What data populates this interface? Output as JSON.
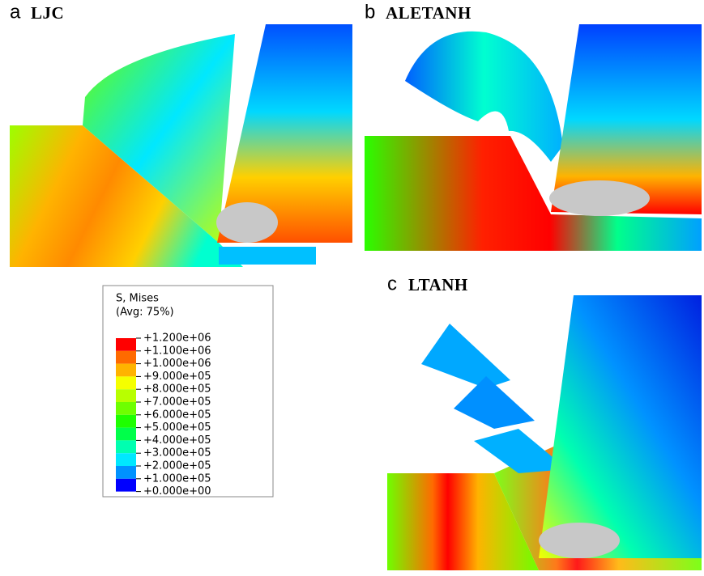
{
  "panels": [
    {
      "letter": "a",
      "title": "LJC"
    },
    {
      "letter": "b",
      "title": "ALETANH"
    },
    {
      "letter": "c",
      "title": "LTANH"
    }
  ],
  "legend": {
    "title": [
      "S, Mises",
      "(Avg: 75%)"
    ],
    "entries": [
      "+1.200e+06",
      "+1.100e+06",
      "+1.000e+06",
      "+9.000e+05",
      "+8.000e+05",
      "+7.000e+05",
      "+6.000e+05",
      "+5.000e+05",
      "+4.000e+05",
      "+3.000e+05",
      "+2.000e+05",
      "+1.000e+05",
      "+0.000e+00"
    ],
    "colors": [
      "#ff0000",
      "#ff6a00",
      "#ffb300",
      "#f5ff00",
      "#b8ff00",
      "#6eff00",
      "#1eff00",
      "#00ff4a",
      "#00ffb0",
      "#00e8ff",
      "#0092ff",
      "#0000ff"
    ]
  }
}
